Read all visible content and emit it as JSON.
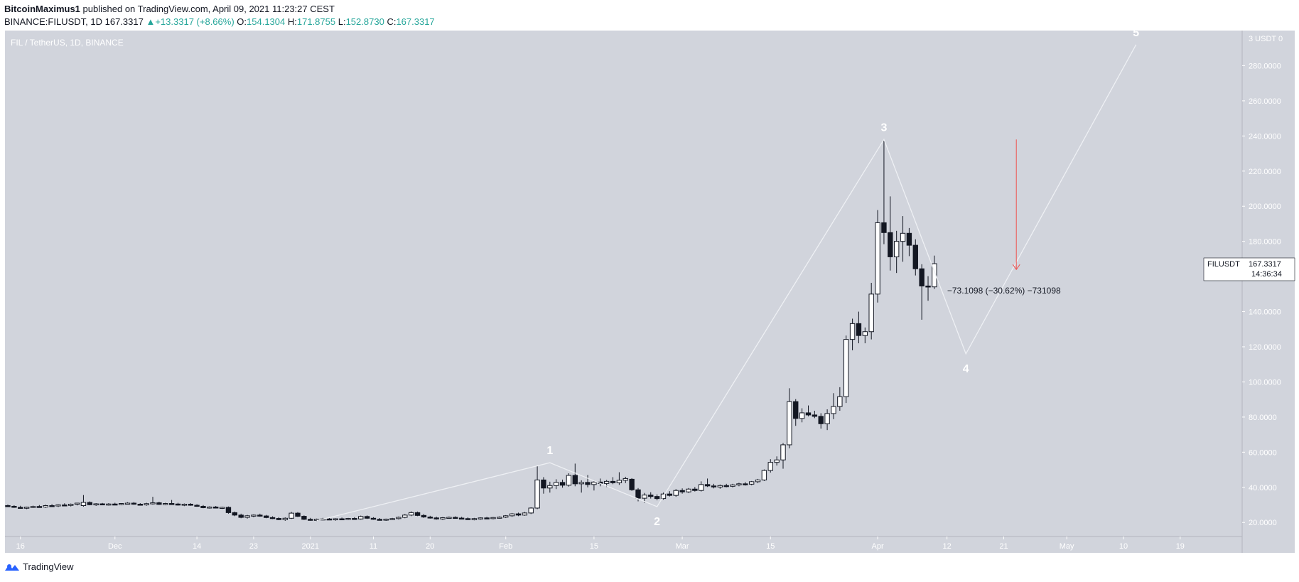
{
  "header": {
    "author": "BitcoinMaximus1",
    "published": "published on TradingView.com, April 09, 2021 11:23:27 CEST"
  },
  "ticker": {
    "symbol": "BINANCE:FILUSDT, 1D",
    "price": "167.3317",
    "change": "+13.3317 (+8.66%)",
    "o_label": "O:",
    "o": "154.1304",
    "h_label": "H:",
    "h": "171.8755",
    "l_label": "L:",
    "l": "152.8730",
    "c_label": "C:",
    "c": "167.3317"
  },
  "footer": {
    "brand": "TradingView"
  },
  "colors": {
    "plot_bg": "#d1d4dc",
    "accent": "#26a69a",
    "target_arrow": "#ef5350",
    "wave_line": "#eef0f4"
  },
  "chart_data": {
    "type": "candlestick",
    "title": "FIL / TetherUS, 1D, BINANCE",
    "ylabel": "USDT",
    "y_axis_unit_label": "3 USDT 0",
    "ylim": [
      12,
      300
    ],
    "y_ticks": [
      "20.0000",
      "40.0000",
      "60.0000",
      "80.0000",
      "100.0000",
      "120.0000",
      "140.0000",
      "160.0000",
      "180.0000",
      "200.0000",
      "220.0000",
      "240.0000",
      "260.0000",
      "280.0000"
    ],
    "y_tick_values": [
      20,
      40,
      60,
      80,
      100,
      120,
      140,
      160,
      180,
      200,
      220,
      240,
      260,
      280
    ],
    "x_start_date": "2020-11-14",
    "x_ticks": [
      {
        "label": "16",
        "day": 2
      },
      {
        "label": "Dec",
        "day": 17
      },
      {
        "label": "14",
        "day": 30
      },
      {
        "label": "23",
        "day": 39
      },
      {
        "label": "2021",
        "day": 48
      },
      {
        "label": "11",
        "day": 58
      },
      {
        "label": "20",
        "day": 67
      },
      {
        "label": "Feb",
        "day": 79
      },
      {
        "label": "15",
        "day": 93
      },
      {
        "label": "Mar",
        "day": 107
      },
      {
        "label": "15",
        "day": 121
      },
      {
        "label": "Apr",
        "day": 138
      },
      {
        "label": "12",
        "day": 149
      },
      {
        "label": "21",
        "day": 158
      },
      {
        "label": "May",
        "day": 168
      },
      {
        "label": "10",
        "day": 177
      },
      {
        "label": "19",
        "day": 186
      }
    ],
    "x_range_days": [
      0,
      201
    ],
    "candles": [
      {
        "d": 0,
        "o": 29.6,
        "h": 30.2,
        "l": 28.9,
        "c": 29.2
      },
      {
        "d": 1,
        "o": 29.2,
        "h": 29.8,
        "l": 28.3,
        "c": 28.6
      },
      {
        "d": 2,
        "o": 28.6,
        "h": 29.5,
        "l": 27.9,
        "c": 28.1
      },
      {
        "d": 3,
        "o": 28.1,
        "h": 29.0,
        "l": 27.6,
        "c": 28.7
      },
      {
        "d": 4,
        "o": 28.7,
        "h": 29.6,
        "l": 28.2,
        "c": 29.1
      },
      {
        "d": 5,
        "o": 29.1,
        "h": 29.9,
        "l": 28.5,
        "c": 28.8
      },
      {
        "d": 6,
        "o": 28.8,
        "h": 30.1,
        "l": 28.3,
        "c": 29.6
      },
      {
        "d": 7,
        "o": 29.6,
        "h": 30.4,
        "l": 29.0,
        "c": 29.4
      },
      {
        "d": 8,
        "o": 29.4,
        "h": 30.3,
        "l": 28.8,
        "c": 30.0
      },
      {
        "d": 9,
        "o": 30.0,
        "h": 30.9,
        "l": 29.4,
        "c": 29.7
      },
      {
        "d": 10,
        "o": 29.7,
        "h": 30.8,
        "l": 29.1,
        "c": 30.4
      },
      {
        "d": 11,
        "o": 30.4,
        "h": 31.2,
        "l": 29.7,
        "c": 31.0
      },
      {
        "d": 12,
        "o": 29.6,
        "h": 35.6,
        "l": 29.0,
        "c": 31.4
      },
      {
        "d": 13,
        "o": 31.4,
        "h": 32.0,
        "l": 29.8,
        "c": 30.1
      },
      {
        "d": 14,
        "o": 30.1,
        "h": 31.0,
        "l": 29.4,
        "c": 30.6
      },
      {
        "d": 15,
        "o": 30.6,
        "h": 31.1,
        "l": 29.8,
        "c": 30.2
      },
      {
        "d": 16,
        "o": 30.2,
        "h": 31.0,
        "l": 29.6,
        "c": 30.5
      },
      {
        "d": 17,
        "o": 30.5,
        "h": 31.2,
        "l": 29.9,
        "c": 30.3
      },
      {
        "d": 18,
        "o": 30.3,
        "h": 31.0,
        "l": 29.8,
        "c": 30.8
      },
      {
        "d": 19,
        "o": 30.8,
        "h": 31.5,
        "l": 30.2,
        "c": 31.0
      },
      {
        "d": 20,
        "o": 31.0,
        "h": 31.6,
        "l": 30.1,
        "c": 30.4
      },
      {
        "d": 21,
        "o": 30.4,
        "h": 31.0,
        "l": 29.7,
        "c": 30.0
      },
      {
        "d": 22,
        "o": 30.0,
        "h": 31.2,
        "l": 29.5,
        "c": 30.7
      },
      {
        "d": 23,
        "o": 30.7,
        "h": 34.6,
        "l": 30.2,
        "c": 31.2
      },
      {
        "d": 24,
        "o": 31.2,
        "h": 31.8,
        "l": 30.0,
        "c": 30.3
      },
      {
        "d": 25,
        "o": 30.3,
        "h": 31.2,
        "l": 29.8,
        "c": 30.8
      },
      {
        "d": 26,
        "o": 30.8,
        "h": 32.8,
        "l": 30.2,
        "c": 30.5
      },
      {
        "d": 27,
        "o": 30.5,
        "h": 31.2,
        "l": 29.6,
        "c": 29.9
      },
      {
        "d": 28,
        "o": 29.9,
        "h": 30.8,
        "l": 29.3,
        "c": 30.4
      },
      {
        "d": 29,
        "o": 30.4,
        "h": 31.0,
        "l": 29.5,
        "c": 29.8
      },
      {
        "d": 30,
        "o": 29.8,
        "h": 30.4,
        "l": 28.9,
        "c": 29.2
      },
      {
        "d": 31,
        "o": 29.2,
        "h": 29.9,
        "l": 28.1,
        "c": 28.4
      },
      {
        "d": 32,
        "o": 28.4,
        "h": 29.2,
        "l": 27.9,
        "c": 28.8
      },
      {
        "d": 33,
        "o": 28.8,
        "h": 29.4,
        "l": 28.0,
        "c": 28.3
      },
      {
        "d": 34,
        "o": 28.3,
        "h": 29.0,
        "l": 27.7,
        "c": 28.6
      },
      {
        "d": 35,
        "o": 28.6,
        "h": 29.1,
        "l": 25.0,
        "c": 25.6
      },
      {
        "d": 36,
        "o": 25.6,
        "h": 26.2,
        "l": 23.6,
        "c": 24.2
      },
      {
        "d": 37,
        "o": 24.2,
        "h": 25.0,
        "l": 22.4,
        "c": 22.9
      },
      {
        "d": 38,
        "o": 22.9,
        "h": 24.3,
        "l": 22.2,
        "c": 23.8
      },
      {
        "d": 39,
        "o": 23.8,
        "h": 24.6,
        "l": 23.0,
        "c": 24.2
      },
      {
        "d": 40,
        "o": 24.2,
        "h": 25.0,
        "l": 23.3,
        "c": 23.7
      },
      {
        "d": 41,
        "o": 23.7,
        "h": 24.3,
        "l": 22.4,
        "c": 22.8
      },
      {
        "d": 42,
        "o": 22.8,
        "h": 23.5,
        "l": 21.9,
        "c": 22.3
      },
      {
        "d": 43,
        "o": 22.3,
        "h": 23.0,
        "l": 21.3,
        "c": 21.6
      },
      {
        "d": 44,
        "o": 21.6,
        "h": 22.9,
        "l": 20.9,
        "c": 22.4
      },
      {
        "d": 45,
        "o": 22.4,
        "h": 26.0,
        "l": 22.0,
        "c": 25.3
      },
      {
        "d": 46,
        "o": 25.3,
        "h": 25.9,
        "l": 23.1,
        "c": 23.5
      },
      {
        "d": 47,
        "o": 23.5,
        "h": 24.0,
        "l": 21.4,
        "c": 21.8
      },
      {
        "d": 48,
        "o": 21.8,
        "h": 22.6,
        "l": 21.0,
        "c": 21.4
      },
      {
        "d": 49,
        "o": 21.4,
        "h": 22.2,
        "l": 20.8,
        "c": 21.8
      },
      {
        "d": 50,
        "o": 21.8,
        "h": 22.6,
        "l": 21.2,
        "c": 22.0
      },
      {
        "d": 51,
        "o": 22.0,
        "h": 22.7,
        "l": 21.4,
        "c": 21.6
      },
      {
        "d": 52,
        "o": 21.6,
        "h": 22.4,
        "l": 21.0,
        "c": 22.1
      },
      {
        "d": 53,
        "o": 22.1,
        "h": 22.8,
        "l": 21.5,
        "c": 21.9
      },
      {
        "d": 54,
        "o": 21.9,
        "h": 22.6,
        "l": 21.3,
        "c": 22.3
      },
      {
        "d": 55,
        "o": 22.3,
        "h": 23.0,
        "l": 21.7,
        "c": 22.0
      },
      {
        "d": 56,
        "o": 22.0,
        "h": 23.9,
        "l": 21.6,
        "c": 23.4
      },
      {
        "d": 57,
        "o": 23.4,
        "h": 24.0,
        "l": 22.0,
        "c": 22.4
      },
      {
        "d": 58,
        "o": 22.4,
        "h": 23.0,
        "l": 21.5,
        "c": 21.8
      },
      {
        "d": 59,
        "o": 21.8,
        "h": 22.5,
        "l": 21.1,
        "c": 21.5
      },
      {
        "d": 60,
        "o": 21.5,
        "h": 22.2,
        "l": 20.9,
        "c": 21.9
      },
      {
        "d": 61,
        "o": 21.9,
        "h": 22.6,
        "l": 21.3,
        "c": 22.2
      },
      {
        "d": 62,
        "o": 22.2,
        "h": 23.4,
        "l": 21.7,
        "c": 22.9
      },
      {
        "d": 63,
        "o": 22.9,
        "h": 24.8,
        "l": 22.4,
        "c": 24.2
      },
      {
        "d": 64,
        "o": 24.2,
        "h": 26.3,
        "l": 23.6,
        "c": 25.6
      },
      {
        "d": 65,
        "o": 25.6,
        "h": 26.2,
        "l": 23.6,
        "c": 24.0
      },
      {
        "d": 66,
        "o": 24.0,
        "h": 24.8,
        "l": 22.6,
        "c": 23.1
      },
      {
        "d": 67,
        "o": 23.1,
        "h": 23.8,
        "l": 22.2,
        "c": 22.6
      },
      {
        "d": 68,
        "o": 22.6,
        "h": 23.3,
        "l": 21.6,
        "c": 22.0
      },
      {
        "d": 69,
        "o": 22.0,
        "h": 23.1,
        "l": 21.4,
        "c": 22.7
      },
      {
        "d": 70,
        "o": 22.7,
        "h": 23.4,
        "l": 22.1,
        "c": 22.9
      },
      {
        "d": 71,
        "o": 22.9,
        "h": 23.5,
        "l": 22.2,
        "c": 22.5
      },
      {
        "d": 72,
        "o": 22.5,
        "h": 23.2,
        "l": 21.9,
        "c": 22.2
      },
      {
        "d": 73,
        "o": 22.2,
        "h": 22.9,
        "l": 21.5,
        "c": 21.8
      },
      {
        "d": 74,
        "o": 21.8,
        "h": 22.6,
        "l": 21.2,
        "c": 22.2
      },
      {
        "d": 75,
        "o": 22.2,
        "h": 22.9,
        "l": 21.6,
        "c": 22.6
      },
      {
        "d": 76,
        "o": 22.6,
        "h": 23.2,
        "l": 22.0,
        "c": 22.4
      },
      {
        "d": 77,
        "o": 22.4,
        "h": 23.1,
        "l": 21.8,
        "c": 22.8
      },
      {
        "d": 78,
        "o": 22.8,
        "h": 23.5,
        "l": 22.2,
        "c": 23.0
      },
      {
        "d": 79,
        "o": 23.0,
        "h": 24.2,
        "l": 22.5,
        "c": 23.8
      },
      {
        "d": 80,
        "o": 23.8,
        "h": 25.4,
        "l": 23.2,
        "c": 24.9
      },
      {
        "d": 81,
        "o": 24.9,
        "h": 25.6,
        "l": 23.6,
        "c": 24.2
      },
      {
        "d": 82,
        "o": 24.2,
        "h": 26.0,
        "l": 23.8,
        "c": 25.4
      },
      {
        "d": 83,
        "o": 25.4,
        "h": 28.6,
        "l": 24.8,
        "c": 28.2
      },
      {
        "d": 84,
        "o": 28.2,
        "h": 52.0,
        "l": 27.6,
        "c": 44.2
      },
      {
        "d": 85,
        "o": 44.2,
        "h": 45.8,
        "l": 36.4,
        "c": 39.6
      },
      {
        "d": 86,
        "o": 39.6,
        "h": 43.2,
        "l": 37.0,
        "c": 41.0
      },
      {
        "d": 87,
        "o": 41.0,
        "h": 44.6,
        "l": 39.0,
        "c": 42.8
      },
      {
        "d": 88,
        "o": 42.8,
        "h": 44.4,
        "l": 39.8,
        "c": 41.2
      },
      {
        "d": 89,
        "o": 41.2,
        "h": 48.0,
        "l": 40.4,
        "c": 46.8
      },
      {
        "d": 90,
        "o": 46.8,
        "h": 53.5,
        "l": 40.6,
        "c": 42.0
      },
      {
        "d": 91,
        "o": 42.0,
        "h": 44.0,
        "l": 37.0,
        "c": 42.8
      },
      {
        "d": 92,
        "o": 42.8,
        "h": 47.0,
        "l": 40.0,
        "c": 41.6
      },
      {
        "d": 93,
        "o": 41.6,
        "h": 44.0,
        "l": 38.2,
        "c": 43.0
      },
      {
        "d": 94,
        "o": 43.0,
        "h": 45.0,
        "l": 40.6,
        "c": 42.2
      },
      {
        "d": 95,
        "o": 42.2,
        "h": 44.2,
        "l": 40.2,
        "c": 43.4
      },
      {
        "d": 96,
        "o": 43.4,
        "h": 45.8,
        "l": 41.8,
        "c": 42.6
      },
      {
        "d": 97,
        "o": 42.6,
        "h": 48.6,
        "l": 41.4,
        "c": 44.0
      },
      {
        "d": 98,
        "o": 44.0,
        "h": 46.0,
        "l": 42.4,
        "c": 45.0
      },
      {
        "d": 99,
        "o": 44.6,
        "h": 45.2,
        "l": 38.0,
        "c": 38.6
      },
      {
        "d": 100,
        "o": 38.6,
        "h": 39.6,
        "l": 32.0,
        "c": 33.8
      },
      {
        "d": 101,
        "o": 33.8,
        "h": 36.8,
        "l": 31.2,
        "c": 35.6
      },
      {
        "d": 102,
        "o": 35.6,
        "h": 37.2,
        "l": 33.6,
        "c": 34.8
      },
      {
        "d": 103,
        "o": 34.8,
        "h": 36.0,
        "l": 32.6,
        "c": 33.6
      },
      {
        "d": 104,
        "o": 33.6,
        "h": 37.0,
        "l": 33.0,
        "c": 36.2
      },
      {
        "d": 105,
        "o": 36.2,
        "h": 37.8,
        "l": 34.8,
        "c": 35.4
      },
      {
        "d": 106,
        "o": 35.4,
        "h": 39.0,
        "l": 34.6,
        "c": 38.2
      },
      {
        "d": 107,
        "o": 38.2,
        "h": 39.4,
        "l": 36.4,
        "c": 37.4
      },
      {
        "d": 108,
        "o": 37.4,
        "h": 39.6,
        "l": 36.8,
        "c": 39.0
      },
      {
        "d": 109,
        "o": 39.0,
        "h": 40.2,
        "l": 37.6,
        "c": 38.2
      },
      {
        "d": 110,
        "o": 38.2,
        "h": 43.4,
        "l": 37.6,
        "c": 41.6
      },
      {
        "d": 111,
        "o": 41.6,
        "h": 45.0,
        "l": 40.2,
        "c": 40.8
      },
      {
        "d": 112,
        "o": 40.8,
        "h": 42.0,
        "l": 39.4,
        "c": 40.2
      },
      {
        "d": 113,
        "o": 40.2,
        "h": 41.6,
        "l": 39.2,
        "c": 41.0
      },
      {
        "d": 114,
        "o": 41.0,
        "h": 42.0,
        "l": 40.0,
        "c": 40.6
      },
      {
        "d": 115,
        "o": 40.6,
        "h": 42.0,
        "l": 40.0,
        "c": 41.4
      },
      {
        "d": 116,
        "o": 41.4,
        "h": 42.6,
        "l": 40.6,
        "c": 42.0
      },
      {
        "d": 117,
        "o": 42.0,
        "h": 43.0,
        "l": 41.0,
        "c": 41.8
      },
      {
        "d": 118,
        "o": 41.8,
        "h": 43.6,
        "l": 41.2,
        "c": 43.2
      },
      {
        "d": 119,
        "o": 43.2,
        "h": 44.8,
        "l": 42.4,
        "c": 44.2
      },
      {
        "d": 120,
        "o": 44.2,
        "h": 50.2,
        "l": 43.6,
        "c": 49.6
      },
      {
        "d": 121,
        "o": 49.6,
        "h": 56.0,
        "l": 48.4,
        "c": 54.2
      },
      {
        "d": 122,
        "o": 54.2,
        "h": 57.6,
        "l": 52.4,
        "c": 55.6
      },
      {
        "d": 123,
        "o": 55.6,
        "h": 65.2,
        "l": 50.6,
        "c": 64.2
      },
      {
        "d": 124,
        "o": 64.2,
        "h": 96.4,
        "l": 62.2,
        "c": 88.8
      },
      {
        "d": 125,
        "o": 88.8,
        "h": 90.2,
        "l": 75.0,
        "c": 79.2
      },
      {
        "d": 126,
        "o": 79.2,
        "h": 85.0,
        "l": 77.0,
        "c": 82.4
      },
      {
        "d": 127,
        "o": 82.4,
        "h": 86.6,
        "l": 80.4,
        "c": 81.2
      },
      {
        "d": 128,
        "o": 81.2,
        "h": 83.6,
        "l": 79.4,
        "c": 80.4
      },
      {
        "d": 129,
        "o": 80.4,
        "h": 82.2,
        "l": 73.4,
        "c": 76.2
      },
      {
        "d": 130,
        "o": 76.2,
        "h": 84.4,
        "l": 72.6,
        "c": 82.0
      },
      {
        "d": 131,
        "o": 82.0,
        "h": 93.6,
        "l": 78.8,
        "c": 86.0
      },
      {
        "d": 132,
        "o": 86.0,
        "h": 97.0,
        "l": 83.6,
        "c": 91.6
      },
      {
        "d": 133,
        "o": 91.6,
        "h": 126.4,
        "l": 88.0,
        "c": 124.2
      },
      {
        "d": 134,
        "o": 124.2,
        "h": 136.0,
        "l": 118.0,
        "c": 133.2
      },
      {
        "d": 135,
        "o": 133.2,
        "h": 140.0,
        "l": 122.0,
        "c": 126.4
      },
      {
        "d": 136,
        "o": 126.4,
        "h": 131.0,
        "l": 122.0,
        "c": 128.6
      },
      {
        "d": 137,
        "o": 128.6,
        "h": 156.4,
        "l": 124.2,
        "c": 150.0
      },
      {
        "d": 138,
        "o": 150.0,
        "h": 197.8,
        "l": 145.2,
        "c": 190.6
      },
      {
        "d": 139,
        "o": 190.6,
        "h": 238.0,
        "l": 178.4,
        "c": 185.0
      },
      {
        "d": 140,
        "o": 185.0,
        "h": 205.6,
        "l": 163.4,
        "c": 171.2
      },
      {
        "d": 141,
        "o": 171.2,
        "h": 186.0,
        "l": 162.0,
        "c": 180.0
      },
      {
        "d": 142,
        "o": 180.0,
        "h": 194.4,
        "l": 168.4,
        "c": 184.6
      },
      {
        "d": 143,
        "o": 184.6,
        "h": 187.6,
        "l": 171.6,
        "c": 177.8
      },
      {
        "d": 144,
        "o": 177.8,
        "h": 181.2,
        "l": 160.6,
        "c": 164.4
      },
      {
        "d": 145,
        "o": 164.4,
        "h": 167.0,
        "l": 135.4,
        "c": 154.6
      },
      {
        "d": 146,
        "o": 154.6,
        "h": 160.2,
        "l": 146.2,
        "c": 154.1
      },
      {
        "d": 147,
        "o": 154.1,
        "h": 171.9,
        "l": 152.9,
        "c": 167.3
      }
    ],
    "wave_points": [
      {
        "label": "",
        "day": 49,
        "value": 21.0
      },
      {
        "label": "1",
        "day": 86,
        "value": 54.0
      },
      {
        "label": "2",
        "day": 103,
        "value": 29.0
      },
      {
        "label": "3",
        "day": 139,
        "value": 238.0
      },
      {
        "label": "4",
        "day": 152,
        "value": 116.0
      },
      {
        "label": "5",
        "day": 179,
        "value": 292.0
      }
    ],
    "target_arrow": {
      "day": 160,
      "from_value": 238.0,
      "to_value": 164.0
    },
    "measure_label": "−73.1098 (−30.62%) −731098",
    "price_tag": {
      "symbol": "FILUSDT",
      "price": "167.3317",
      "countdown": "14:36:34",
      "value": 167.3317
    },
    "grid": false
  }
}
